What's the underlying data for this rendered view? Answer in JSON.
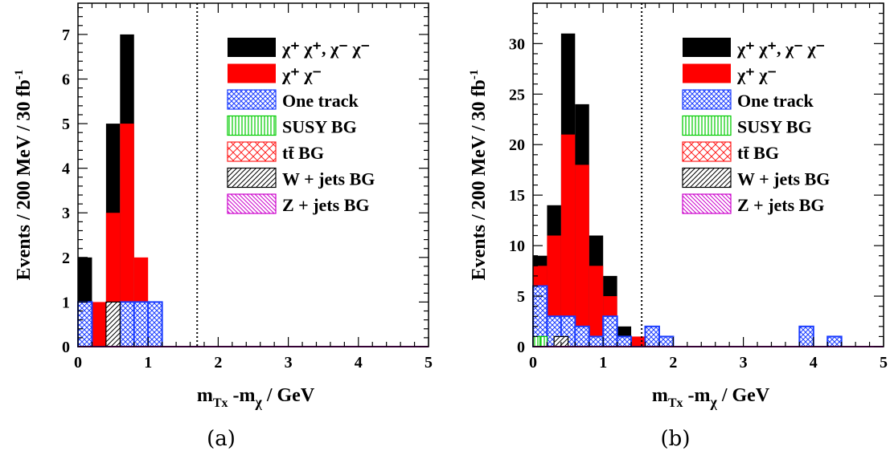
{
  "figure": {
    "captions": [
      "(a)",
      "(b)"
    ]
  },
  "colors": {
    "same_sign": "#000000",
    "opposite_sign": "#ff0000",
    "one_track": "#1a3cff",
    "susy_bg": "#00cc00",
    "ttbar_bg": "#ff2020",
    "wjets_bg": "#000000",
    "zjets_bg": "#cc00cc"
  },
  "chart_data": [
    {
      "type": "bar",
      "stacked": true,
      "caption": "(a)",
      "xlabel_main": "m",
      "xlabel_sub1": "Tx",
      "xlabel_mid": " -m",
      "xlabel_sub2": "χ",
      "xlabel_tail": " / GeV",
      "ylabel": "Events / 200 MeV / 30 fb",
      "ylabel_sup": "-1",
      "xlim": [
        0,
        5
      ],
      "ylim": [
        0,
        7.7
      ],
      "xticks": [
        "0",
        "1",
        "2",
        "3",
        "4",
        "5"
      ],
      "yticks": [
        "0",
        "1",
        "2",
        "3",
        "4",
        "5",
        "6",
        "7"
      ],
      "bin_width": 0.2,
      "cut_line_x": 1.7,
      "legend_position": "top-right",
      "legend": [
        {
          "key": "same_sign",
          "label": "χ⁺ χ⁺, χ⁻ χ⁻"
        },
        {
          "key": "opposite_sign",
          "label": "χ⁺ χ⁻"
        },
        {
          "key": "one_track",
          "label": "One track"
        },
        {
          "key": "susy_bg",
          "label": "SUSY BG"
        },
        {
          "key": "ttbar_bg",
          "label": "tt̄ BG"
        },
        {
          "key": "wjets_bg",
          "label": "W + jets BG"
        },
        {
          "key": "zjets_bg",
          "label": "Z + jets BG"
        }
      ],
      "series": [
        {
          "key": "same_sign",
          "bins": [
            [
              0.0,
              2
            ],
            [
              0.4,
              5
            ],
            [
              0.6,
              7
            ]
          ]
        },
        {
          "key": "opposite_sign",
          "bins": [
            [
              0.2,
              1
            ],
            [
              0.4,
              3
            ],
            [
              0.6,
              5
            ],
            [
              0.8,
              2
            ]
          ]
        },
        {
          "key": "one_track",
          "bins": [
            [
              0.0,
              1
            ],
            [
              0.6,
              1
            ],
            [
              0.8,
              1
            ],
            [
              1.0,
              1
            ]
          ]
        },
        {
          "key": "wjets_bg",
          "bins": [
            [
              0.4,
              1
            ]
          ]
        }
      ]
    },
    {
      "type": "bar",
      "stacked": true,
      "caption": "(b)",
      "xlabel_main": "m",
      "xlabel_sub1": "Tx",
      "xlabel_mid": " -m",
      "xlabel_sub2": "χ",
      "xlabel_tail": " / GeV",
      "ylabel": "Events / 200 MeV / 30 fb",
      "ylabel_sup": "-1",
      "xlim": [
        0,
        5
      ],
      "ylim": [
        0,
        34
      ],
      "xticks": [
        "0",
        "1",
        "2",
        "3",
        "4",
        "5"
      ],
      "yticks": [
        "0",
        "5",
        "10",
        "15",
        "20",
        "25",
        "30"
      ],
      "bin_width": 0.2,
      "cut_line_x": 1.55,
      "legend_position": "top-right",
      "legend": [
        {
          "key": "same_sign",
          "label": "χ⁺ χ⁺, χ⁻ χ⁻"
        },
        {
          "key": "opposite_sign",
          "label": "χ⁺ χ⁻"
        },
        {
          "key": "one_track",
          "label": "One track"
        },
        {
          "key": "susy_bg",
          "label": "SUSY BG"
        },
        {
          "key": "ttbar_bg",
          "label": "tt̄ BG"
        },
        {
          "key": "wjets_bg",
          "label": "W + jets BG"
        },
        {
          "key": "zjets_bg",
          "label": "Z + jets BG"
        }
      ],
      "series": [
        {
          "key": "same_sign",
          "bins": [
            [
              0.0,
              9
            ],
            [
              0.2,
              14
            ],
            [
              0.4,
              31
            ],
            [
              0.6,
              24
            ],
            [
              0.8,
              11
            ],
            [
              1.0,
              7
            ],
            [
              1.2,
              2
            ]
          ]
        },
        {
          "key": "opposite_sign",
          "bins": [
            [
              0.0,
              8
            ],
            [
              0.2,
              11
            ],
            [
              0.4,
              21
            ],
            [
              0.6,
              18
            ],
            [
              0.8,
              8
            ],
            [
              1.0,
              5
            ],
            [
              1.2,
              1
            ],
            [
              1.4,
              1
            ]
          ]
        },
        {
          "key": "one_track",
          "bins": [
            [
              0.0,
              6
            ],
            [
              0.2,
              3
            ],
            [
              0.4,
              3
            ],
            [
              0.6,
              2
            ],
            [
              0.8,
              1
            ],
            [
              1.0,
              3
            ],
            [
              1.2,
              1
            ],
            [
              1.6,
              2
            ],
            [
              1.8,
              1
            ],
            [
              3.8,
              2
            ],
            [
              4.2,
              1
            ]
          ]
        },
        {
          "key": "susy_bg",
          "bins": [
            [
              0.0,
              1
            ],
            [
              0.1,
              1
            ]
          ]
        },
        {
          "key": "wjets_bg",
          "bins": [
            [
              0.3,
              1
            ]
          ]
        }
      ]
    }
  ]
}
